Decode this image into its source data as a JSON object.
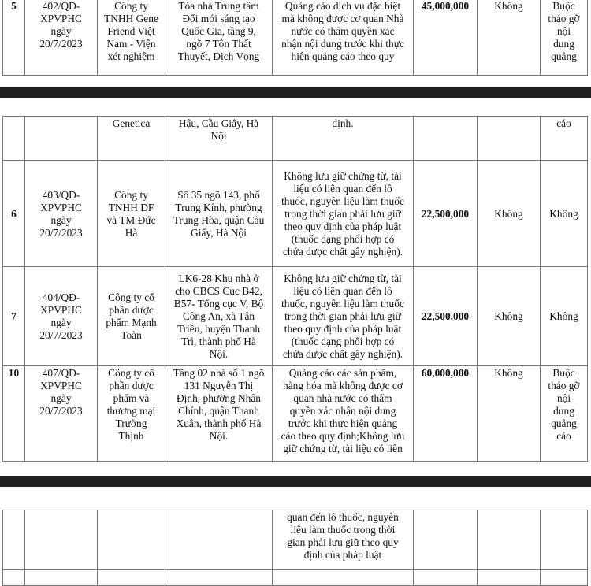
{
  "segments": [
    {
      "rows": [
        {
          "no": "5",
          "decision": "402/QĐ-\nXPVPHC\nngày\n20/7/2023",
          "org": "Công ty\nTNHH Gene\nFriend Việt\nNam - Viện\nxét nghiệm",
          "address": "Tòa nhà Trung tâm\nĐổi mới sáng tạo\nQuốc Gia, tầng 9,\nngõ 7 Tôn Thất\nThuyết, Dịch Vọng",
          "violation": "Quảng cáo dịch vụ đặc biệt\nmà không được cơ quan Nhà\nnước có thẩm quyền xác\nnhận nội dung trước khi thực\nhiện quảng cáo theo quy",
          "fine": "45,000,000",
          "extra": "Không",
          "remedy": "Buộc\ntháo gỡ\nnội\ndung\nquảng"
        }
      ]
    },
    {
      "rows": [
        {
          "no": "",
          "decision": "",
          "org": "Genetica",
          "address": "Hậu, Cầu Giấy, Hà\nNội",
          "violation": "định.",
          "fine": "",
          "extra": "",
          "remedy": "cáo"
        },
        {
          "no": "6",
          "decision": "403/QĐ-\nXPVPHC\nngày\n20/7/2023",
          "org": "Công ty\nTNHH DF\nvà TM Đức\nHà",
          "address": "Số 35 ngõ 143, phố\nTrung Kính, phường\nTrung Hòa, quận Cầu\nGiấy, Hà Nội",
          "violation": "Không lưu giữ chứng từ, tài\nliệu có liên quan đến lô\nthuốc, nguyên liệu làm thuốc\ntrong thời gian phải lưu giữ\ntheo quy định của pháp luật\n(thuốc dạng phối hợp có\nchứa dược chất gây nghiện).",
          "fine": "22,500,000",
          "extra": "Không",
          "remedy": "Không"
        },
        {
          "no": "7",
          "decision": "404/QĐ-\nXPVPHC\nngày\n20/7/2023",
          "org": "Công ty cổ\nphần dược\nphẩm Mạnh\nToàn",
          "address": "LK6-28 Khu nhà ở\ncho CBCS Cục B42,\nB57- Tổng cục V, Bộ\nCông An, xã Tân\nTriều, huyện Thanh\nTrì, thành phố Hà\nNội.",
          "violation": "Không lưu giữ chứng từ, tài\nliệu có liên quan đến lô\nthuốc, nguyên liệu làm thuốc\ntrong thời gian phải lưu giữ\ntheo quy định của pháp luật\n(thuốc dạng phối hợp có\nchứa dược chất gây nghiện).",
          "fine": "22,500,000",
          "extra": "Không",
          "remedy": "Không"
        },
        {
          "no": "10",
          "decision": "407/QĐ-\nXPVPHC\nngày\n20/7/2023",
          "org": "Công ty cổ\nphần dược\nphẩm và\nthương mại\nTrường\nThịnh",
          "address": "Tầng 02 nhà số 1 ngõ\n131 Nguyễn Thị\nĐịnh, phường Nhân\nChính, quận Thanh\nXuân, thành phố Hà\nNội.",
          "violation": "Quảng cáo các sản phẩm,\nhàng hóa mà không được cơ\nquan nhà nước có thẩm\nquyền xác nhận nội dung\ntrước khi thực hiện quảng\ncáo theo quy định;Không lưu\ngiữ chứng từ, tài liệu có liên",
          "fine": "60,000,000",
          "extra": "Không",
          "remedy": "Buộc\ntháo gỡ\nnội\ndung\nquảng\ncáo"
        }
      ]
    },
    {
      "rows": [
        {
          "no": "",
          "decision": "",
          "org": "",
          "address": "",
          "violation": "quan đến lô thuốc, nguyên\nliệu làm thuốc trong thời\ngian phải lưu giữ theo quy\nđịnh của pháp luật",
          "fine": "",
          "extra": "",
          "remedy": ""
        },
        {
          "no": "",
          "decision": "",
          "org": "",
          "address": "",
          "violation": "",
          "fine": "",
          "extra": "",
          "remedy": ""
        }
      ]
    }
  ]
}
